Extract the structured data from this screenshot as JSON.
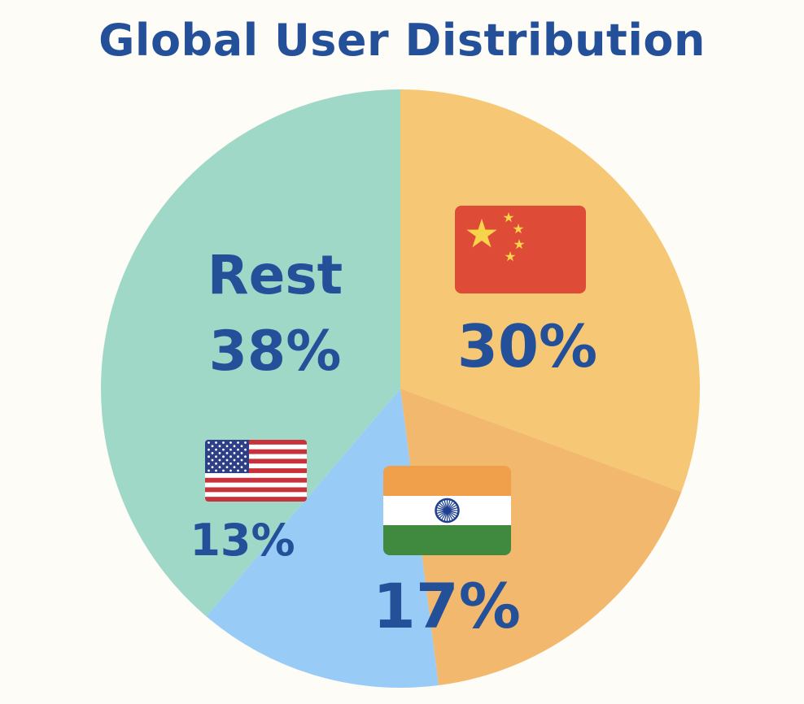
{
  "colors": {
    "background": "#fdfcf7",
    "title": "#24509a",
    "label": "#24509a"
  },
  "chart_data": {
    "type": "pie",
    "title": "Global User Distribution",
    "slices": [
      {
        "key": "china",
        "label": "",
        "value": 30,
        "value_label": "30%",
        "color": "#f6c875",
        "icon": "china-flag-icon"
      },
      {
        "key": "india",
        "label": "",
        "value": 17,
        "value_label": "17%",
        "color": "#f2b96e",
        "icon": "india-flag-icon"
      },
      {
        "key": "usa",
        "label": "",
        "value": 13,
        "value_label": "13%",
        "color": "#98cbf5",
        "icon": "usa-flag-icon"
      },
      {
        "key": "rest",
        "label": "Rest",
        "value": 38,
        "value_label": "38%",
        "color": "#a0d8c8",
        "icon": ""
      }
    ],
    "legend": "none",
    "start_angle": "12 o'clock",
    "direction": "clockwise"
  }
}
